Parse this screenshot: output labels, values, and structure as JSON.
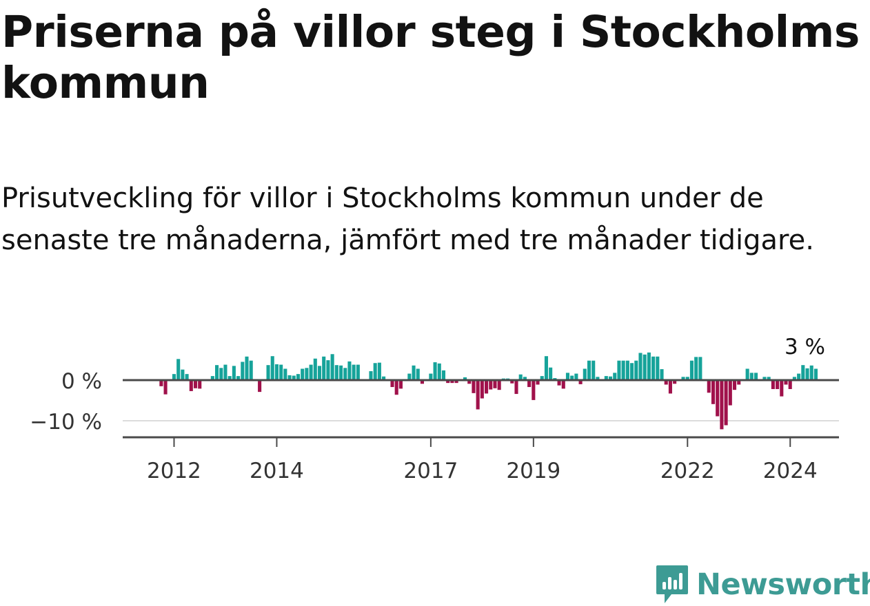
{
  "header": {
    "title": "Priserna på villor steg i Stockholms kommun",
    "subtitle": "Prisutveckling för villor i Stockholms kommun under de senaste tre månaderna, jämfört med tre månader tidigare."
  },
  "chart_data": {
    "type": "bar",
    "title": "Priserna på villor steg i Stockholms kommun",
    "xlabel": "",
    "ylabel": "",
    "x_start": 2011.75,
    "x_step": 0.08333,
    "xlim": [
      2011.0,
      2024.95
    ],
    "ylim": [
      -14,
      7
    ],
    "y_ticks": [
      {
        "value": 0,
        "label": "0 %"
      },
      {
        "value": -10,
        "label": "−10 %"
      }
    ],
    "x_ticks": [
      {
        "value": 2012,
        "label": "2012"
      },
      {
        "value": 2014,
        "label": "2014"
      },
      {
        "value": 2017,
        "label": "2017"
      },
      {
        "value": 2019,
        "label": "2019"
      },
      {
        "value": 2022,
        "label": "2022"
      },
      {
        "value": 2024,
        "label": "2024"
      }
    ],
    "colors": {
      "positive": "#16a39a",
      "negative": "#a0114b"
    },
    "annotation": {
      "label": "3 %",
      "anchor": "last-bar"
    },
    "values": [
      -1.5,
      -3.5,
      0,
      1.5,
      5.2,
      2.6,
      1.5,
      -2.7,
      -2,
      -2.1,
      0,
      0,
      1,
      3.7,
      3,
      3.8,
      1,
      3.5,
      1,
      4.5,
      5.8,
      4.8,
      0,
      -2.9,
      0,
      3.7,
      5.9,
      3.9,
      3.8,
      2.8,
      1.2,
      1.1,
      1.5,
      2.8,
      3,
      3.8,
      5.3,
      3.5,
      5.8,
      4.9,
      6.4,
      3.7,
      3.6,
      3,
      4.6,
      3.8,
      3.8,
      0,
      0,
      2.2,
      4.2,
      4.3,
      0.9,
      0,
      -1.7,
      -3.6,
      -2.1,
      0,
      1.6,
      3.6,
      2.8,
      -0.9,
      0,
      1.6,
      4.4,
      4.1,
      2.4,
      -0.7,
      -0.7,
      -0.7,
      0,
      0.7,
      -0.9,
      -3.2,
      -7.2,
      -4.5,
      -3.3,
      -2.3,
      -2,
      -2.4,
      0.4,
      0.4,
      -0.8,
      -3.4,
      1.4,
      0.8,
      -1.7,
      -4.9,
      -1.1,
      1,
      5.9,
      3.1,
      0.5,
      -1.3,
      -2.1,
      1.8,
      1.1,
      1.6,
      -1,
      2.8,
      4.8,
      4.8,
      0.8,
      0,
      1,
      0.9,
      1.8,
      4.8,
      4.8,
      4.8,
      4.2,
      4.8,
      6.7,
      6.3,
      6.8,
      5.8,
      5.8,
      2.7,
      -1.1,
      -3.3,
      -0.9,
      0,
      0.8,
      0.8,
      4.8,
      5.7,
      5.7,
      0,
      -3.1,
      -5.9,
      -8.9,
      -12.1,
      -11.1,
      -6.2,
      -2.4,
      -1.1,
      0,
      2.8,
      1.8,
      1.8,
      0,
      0.8,
      0.8,
      -2.2,
      -2.2,
      -4,
      -1.1,
      -2.2,
      0.8,
      1.6,
      3.7,
      2.9,
      3.6,
      2.8
    ]
  },
  "branding": {
    "logo_text": "Newsworthy"
  }
}
